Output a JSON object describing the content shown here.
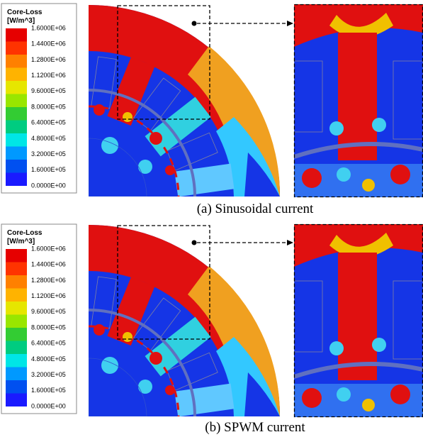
{
  "panels": [
    {
      "legend": {
        "title": "Core-Loss",
        "unit": "[W/m^3]",
        "labels": [
          "1.6000E+06",
          "1.4400E+06",
          "1.2800E+06",
          "1.1200E+06",
          "9.6000E+05",
          "8.0000E+05",
          "6.4000E+05",
          "4.8000E+05",
          "3.2000E+05",
          "1.6000E+05",
          "0.0000E+00"
        ]
      },
      "caption": "(a) Sinusoidal current"
    },
    {
      "legend": {
        "title": "Core-Loss",
        "unit": "[W/m^3]",
        "labels": [
          "1.6000E+06",
          "1.4400E+06",
          "1.2800E+06",
          "1.1200E+06",
          "9.6000E+05",
          "8.0000E+05",
          "6.4000E+05",
          "4.8000E+05",
          "3.2000E+05",
          "1.6000E+05",
          "0.0000E+00"
        ]
      },
      "caption": "(b) SPWM current"
    }
  ]
}
